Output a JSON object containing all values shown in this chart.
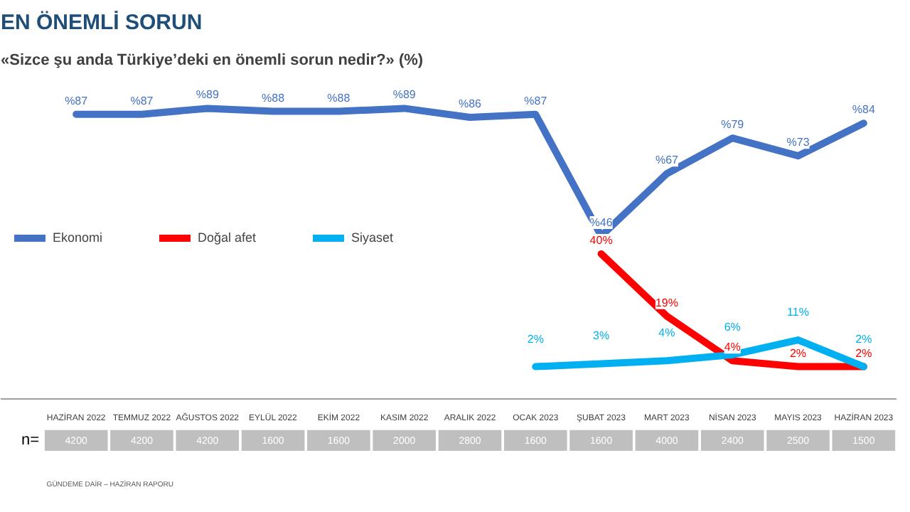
{
  "chart_data": {
    "type": "line",
    "title": "EN ÖNEMLİ SORUN",
    "subtitle": "«Sizce şu anda Türkiye’deki en önemli sorun nedir?» (%)",
    "categories": [
      "HAZİRAN 2022",
      "TEMMUZ 2022",
      "AĞUSTOS 2022",
      "EYLÜL 2022",
      "EKİM 2022",
      "KASIM 2022",
      "ARALIK 2022",
      "OCAK 2023",
      "ŞUBAT 2023",
      "MART 2023",
      "NİSAN 2023",
      "MAYIS 2023",
      "HAZİRAN 2023"
    ],
    "legend": "left",
    "grid": false,
    "tick_labels": "x",
    "series": [
      {
        "name": "Ekonomi",
        "color": "#4472c4",
        "values": [
          87,
          87,
          89,
          88,
          88,
          89,
          86,
          87,
          46,
          67,
          79,
          73,
          84
        ],
        "value_labels": [
          "%87",
          "%87",
          "%89",
          "%88",
          "%88",
          "%89",
          "%86",
          "%87",
          "%46",
          "%67",
          "%79",
          "%73",
          "%84"
        ]
      },
      {
        "name": "Doğal afet",
        "color": "#ff0000",
        "values": [
          null,
          null,
          null,
          null,
          null,
          null,
          null,
          null,
          40,
          19,
          4,
          2,
          2
        ],
        "value_labels": [
          null,
          null,
          null,
          null,
          null,
          null,
          null,
          null,
          "40%",
          "19%",
          "4%",
          "2%",
          "2%"
        ]
      },
      {
        "name": "Siyaset",
        "color": "#00b0f0",
        "values": [
          null,
          null,
          null,
          null,
          null,
          null,
          null,
          2,
          3,
          4,
          6,
          11,
          2
        ],
        "value_labels": [
          null,
          null,
          null,
          null,
          null,
          null,
          null,
          "2%",
          "3%",
          "4%",
          "6%",
          "11%",
          "2%"
        ]
      }
    ],
    "annotations": [
      "n=",
      "4200",
      "4200",
      "4200",
      "1600",
      "1600",
      "2000",
      "2800",
      "1600",
      "1600",
      "4000",
      "2400",
      "2500",
      "1500",
      "GÜNDEME DAİR – HAZİRAN RAPORU"
    ]
  }
}
